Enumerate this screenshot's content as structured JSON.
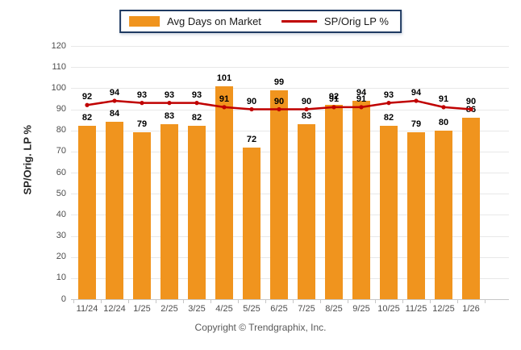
{
  "legend": {
    "bar_label": "Avg Days on Market",
    "line_label": "SP/Orig LP %"
  },
  "y_axis": {
    "title": "SP/Orig. LP %",
    "ticks": [
      0,
      10,
      20,
      30,
      40,
      50,
      60,
      70,
      80,
      90,
      100,
      110,
      120
    ]
  },
  "footer": "Copyright © Trendgraphix, Inc.",
  "colors": {
    "bar": "#F0941E",
    "line": "#C00000",
    "legend_border": "#1F3A62",
    "grid": "#E8E8E8",
    "axis": "#C6C6C6"
  },
  "chart_data": {
    "type": "bar+line",
    "categories": [
      "11/24",
      "12/24",
      "1/25",
      "2/25",
      "3/25",
      "4/25",
      "5/25",
      "6/25",
      "7/25",
      "8/25",
      "9/25",
      "10/25",
      "11/25",
      "12/25",
      "1/26"
    ],
    "series": [
      {
        "name": "Avg Days on Market",
        "type": "bar",
        "color": "#F0941E",
        "values": [
          82,
          84,
          79,
          83,
          82,
          101,
          72,
          99,
          83,
          92,
          94,
          82,
          79,
          80,
          86
        ]
      },
      {
        "name": "SP/Orig LP %",
        "type": "line",
        "color": "#C00000",
        "values": [
          92,
          94,
          93,
          93,
          93,
          91,
          90,
          90,
          90,
          91,
          91,
          93,
          94,
          91,
          90
        ]
      }
    ],
    "title": "",
    "xlabel": "",
    "ylabel": "SP/Orig. LP %",
    "ylim": [
      0,
      120
    ],
    "grid": true,
    "legend_position": "top-center",
    "data_labels": true
  }
}
